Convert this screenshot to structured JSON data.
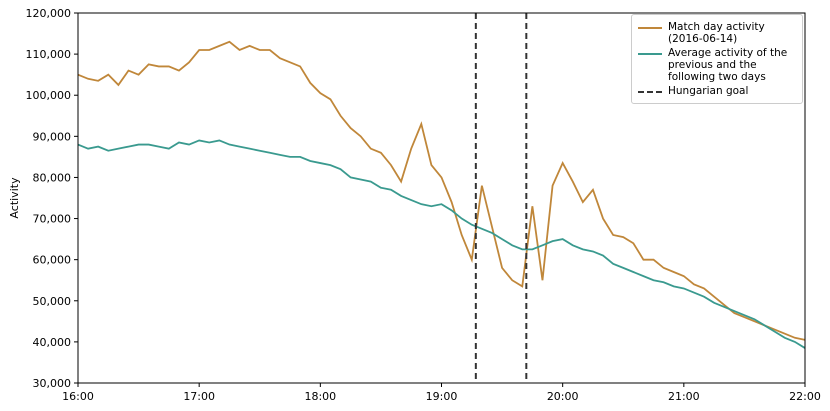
{
  "chart_data": {
    "type": "line",
    "ylabel": "Activity",
    "x": [
      "16:00",
      "16:05",
      "16:10",
      "16:15",
      "16:20",
      "16:25",
      "16:30",
      "16:35",
      "16:40",
      "16:45",
      "16:50",
      "16:55",
      "17:00",
      "17:05",
      "17:10",
      "17:15",
      "17:20",
      "17:25",
      "17:30",
      "17:35",
      "17:40",
      "17:45",
      "17:50",
      "17:55",
      "18:00",
      "18:05",
      "18:10",
      "18:15",
      "18:20",
      "18:25",
      "18:30",
      "18:35",
      "18:40",
      "18:45",
      "18:50",
      "18:55",
      "19:00",
      "19:05",
      "19:10",
      "19:15",
      "19:20",
      "19:25",
      "19:30",
      "19:35",
      "19:40",
      "19:45",
      "19:50",
      "19:55",
      "20:00",
      "20:05",
      "20:10",
      "20:15",
      "20:20",
      "20:25",
      "20:30",
      "20:35",
      "20:40",
      "20:45",
      "20:50",
      "20:55",
      "21:00",
      "21:05",
      "21:10",
      "21:15",
      "21:20",
      "21:25",
      "21:30",
      "21:35",
      "21:40",
      "21:45",
      "21:50",
      "21:55",
      "22:00"
    ],
    "series": [
      {
        "name": "Match day activity (2016-06-14)",
        "color": "#c0873a",
        "values": [
          105000,
          104000,
          103500,
          105000,
          102500,
          106000,
          105000,
          107500,
          107000,
          107000,
          106000,
          108000,
          111000,
          111000,
          112000,
          113000,
          111000,
          112000,
          111000,
          111000,
          109000,
          108000,
          107000,
          103000,
          100500,
          99000,
          95000,
          92000,
          90000,
          87000,
          86000,
          83000,
          79000,
          87000,
          93000,
          83000,
          80000,
          74000,
          66000,
          60000,
          78000,
          68000,
          58000,
          55000,
          53500,
          73000,
          55000,
          78000,
          83500,
          79000,
          74000,
          77000,
          70000,
          66000,
          65500,
          64000,
          60000,
          60000,
          58000,
          57000,
          56000,
          54000,
          53000,
          51000,
          49000,
          47000,
          46000,
          45000,
          44000,
          43000,
          42000,
          41000,
          40500
        ]
      },
      {
        "name": "Average activity of the previous and the following two days",
        "color": "#3a9a8f",
        "values": [
          88000,
          87000,
          87500,
          86500,
          87000,
          87500,
          88000,
          88000,
          87500,
          87000,
          88500,
          88000,
          89000,
          88500,
          89000,
          88000,
          87500,
          87000,
          86500,
          86000,
          85500,
          85000,
          85000,
          84000,
          83500,
          83000,
          82000,
          80000,
          79500,
          79000,
          77500,
          77000,
          75500,
          74500,
          73500,
          73000,
          73500,
          72000,
          70000,
          68500,
          67500,
          66500,
          65000,
          63500,
          62500,
          62500,
          63500,
          64500,
          65000,
          63500,
          62500,
          62000,
          61000,
          59000,
          58000,
          57000,
          56000,
          55000,
          54500,
          53500,
          53000,
          52000,
          51000,
          49500,
          48500,
          47500,
          46500,
          45500,
          44000,
          42500,
          41000,
          40000,
          38500
        ]
      }
    ],
    "vlines": {
      "name": "Hungarian goal",
      "color": "#333333",
      "x": [
        "19:17",
        "19:42"
      ]
    },
    "xlim": [
      "16:00",
      "22:00"
    ],
    "xticks": [
      "16:00",
      "17:00",
      "18:00",
      "19:00",
      "20:00",
      "21:00",
      "22:00"
    ],
    "ylim": [
      30000,
      120000
    ],
    "yticks": [
      {
        "value": 30000,
        "label": "30,000"
      },
      {
        "value": 40000,
        "label": "40,000"
      },
      {
        "value": 50000,
        "label": "50,000"
      },
      {
        "value": 60000,
        "label": "60,000"
      },
      {
        "value": 70000,
        "label": "70,000"
      },
      {
        "value": 80000,
        "label": "80,000"
      },
      {
        "value": 90000,
        "label": "90,000"
      },
      {
        "value": 100000,
        "label": "100,000"
      },
      {
        "value": 110000,
        "label": "110,000"
      },
      {
        "value": 120000,
        "label": "120,000"
      }
    ],
    "legend": "upper right"
  }
}
